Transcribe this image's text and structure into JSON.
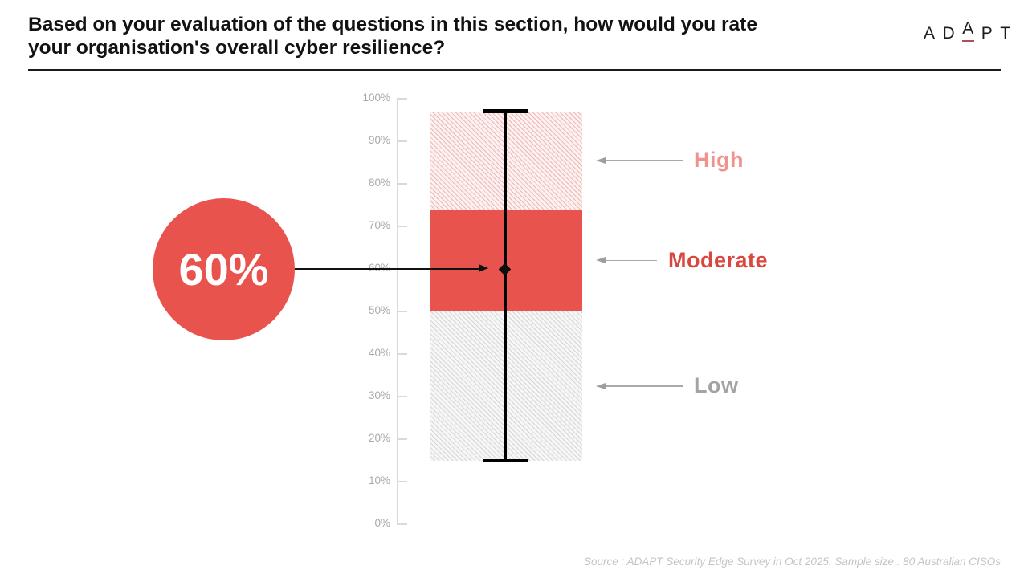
{
  "header": {
    "title": "Based on your evaluation of the questions in this section, how would you rate your organisation's overall cyber resilience?",
    "title_lines": [
      "Based on your evaluation of the questions in this section, how would you rate",
      "your organisation's overall cyber resilience?"
    ],
    "logo": {
      "text": "ADAPT",
      "letters": [
        "A",
        "D",
        "A",
        "P",
        "T"
      ]
    }
  },
  "chart_data": {
    "type": "boxplot",
    "orientation": "vertical",
    "title": "Based on your evaluation of the questions in this section, how would you rate your organisation's overall cyber resilience?",
    "y_axis": {
      "min": 0,
      "max": 100,
      "tick_step": 10,
      "grid": false,
      "tick_labels": [
        "0%",
        "10%",
        "20%",
        "30%",
        "40%",
        "50%",
        "60%",
        "70%",
        "80%",
        "90%",
        "100%"
      ]
    },
    "box": {
      "whisker_max": 97,
      "q3": 74,
      "median_marker": 60,
      "q1": 50,
      "whisker_min": 15
    },
    "zones": [
      {
        "label": "High",
        "from": 74,
        "to": 97,
        "fill": "pink-hatch",
        "label_color": "#f0938d"
      },
      {
        "label": "Moderate",
        "from": 50,
        "to": 74,
        "fill": "solid",
        "label_color": "#d84740"
      },
      {
        "label": "Low",
        "from": 15,
        "to": 50,
        "fill": "gray-hatch",
        "label_color": "#a3a3a3"
      }
    ],
    "callout": {
      "value": 60,
      "value_label": "60%"
    }
  },
  "colors": {
    "box_red": "#e8534d",
    "high_label": "#f0938d",
    "moderate_label": "#d84740",
    "low_label": "#a3a3a3",
    "axis_gray": "#d9d9d9",
    "arrow_gray": "#9e9e9e",
    "whisker_black": "#000000",
    "logo_underline": "#b94a59"
  },
  "footer": {
    "source": "Source : ADAPT Security Edge Survey in Oct 2025. Sample size : 80 Australian CISOs"
  }
}
